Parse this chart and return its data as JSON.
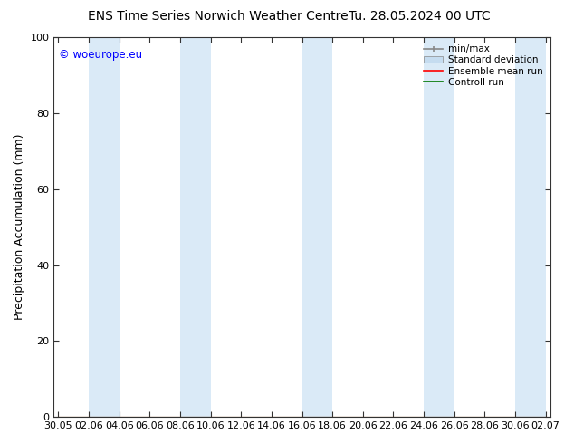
{
  "title_left": "ENS Time Series Norwich Weather Centre",
  "title_right": "Tu. 28.05.2024 00 UTC",
  "ylabel": "Precipitation Accumulation (mm)",
  "watermark": "© woeurope.eu",
  "ylim": [
    0,
    100
  ],
  "yticks": [
    0,
    20,
    40,
    60,
    80,
    100
  ],
  "xtick_labels": [
    "30.05",
    "02.06",
    "04.06",
    "06.06",
    "08.06",
    "10.06",
    "12.06",
    "14.06",
    "16.06",
    "18.06",
    "20.06",
    "22.06",
    "24.06",
    "26.06",
    "28.06",
    "30.06",
    "02.07"
  ],
  "band_color": "#daeaf7",
  "background_color": "#ffffff",
  "legend_entries": [
    "min/max",
    "Standard deviation",
    "Ensemble mean run",
    "Controll run"
  ],
  "title_fontsize": 10,
  "label_fontsize": 9,
  "tick_fontsize": 8
}
